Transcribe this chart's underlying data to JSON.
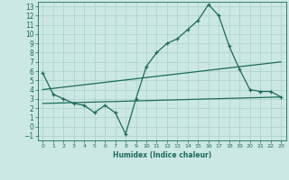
{
  "xlabel": "Humidex (Indice chaleur)",
  "bg_color": "#cce8e4",
  "line_color": "#1a6b5a",
  "grid_color": "#aacfca",
  "xlim": [
    -0.5,
    23.5
  ],
  "ylim": [
    -1.5,
    13.5
  ],
  "xticks": [
    0,
    1,
    2,
    3,
    4,
    5,
    6,
    7,
    8,
    9,
    10,
    11,
    12,
    13,
    14,
    15,
    16,
    17,
    18,
    19,
    20,
    21,
    22,
    23
  ],
  "yticks": [
    -1,
    0,
    1,
    2,
    3,
    4,
    5,
    6,
    7,
    8,
    9,
    10,
    11,
    12,
    13
  ],
  "main_x": [
    0,
    1,
    2,
    3,
    4,
    5,
    6,
    7,
    8,
    9,
    10,
    11,
    12,
    13,
    14,
    15,
    16,
    17,
    18,
    19,
    20,
    21,
    22,
    23
  ],
  "main_y": [
    5.8,
    3.5,
    3.0,
    2.5,
    2.3,
    1.5,
    2.3,
    1.5,
    -0.8,
    3.0,
    6.5,
    8.0,
    9.0,
    9.5,
    10.5,
    11.5,
    13.2,
    12.0,
    8.7,
    6.2,
    4.0,
    3.8,
    3.8,
    3.2
  ],
  "trend1_x": [
    0,
    23
  ],
  "trend1_y": [
    4.0,
    7.0
  ],
  "trend2_x": [
    0,
    23
  ],
  "trend2_y": [
    2.5,
    3.2
  ]
}
